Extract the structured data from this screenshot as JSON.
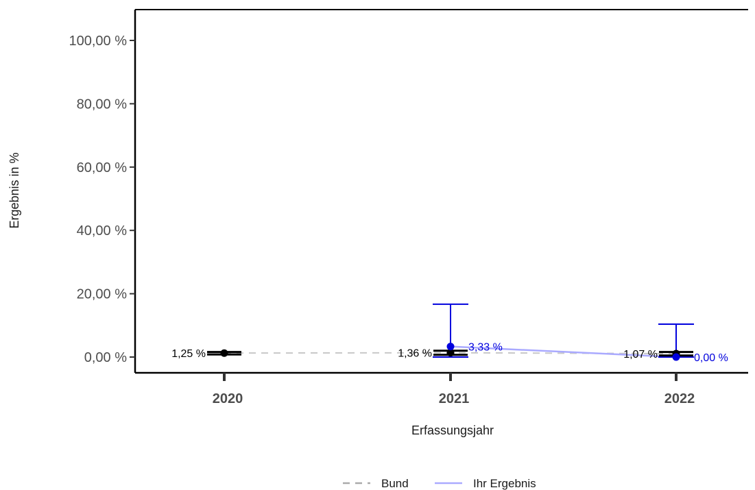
{
  "chart_data": {
    "type": "line",
    "xlabel": "Erfassungsjahr",
    "ylabel": "Ergebnis in %",
    "ylim": [
      0,
      100
    ],
    "y_ticks": [
      0,
      20,
      40,
      60,
      80,
      100
    ],
    "y_tick_labels": [
      "0,00 %",
      "20,00 %",
      "40,00 %",
      "60,00 %",
      "80,00 %",
      "100,00 %"
    ],
    "categories": [
      "2020",
      "2021",
      "2022"
    ],
    "grid": false,
    "legend_position": "bottom",
    "series": [
      {
        "name": "Bund",
        "style": "dashed",
        "color": "#c8c8c8",
        "marker_color": "#000000",
        "values": [
          1.25,
          1.36,
          1.07
        ],
        "labels": [
          "1,25 %",
          "1,36 %",
          "1,07 %"
        ],
        "ci_low": [
          0.8,
          0.7,
          0.5
        ],
        "ci_high": [
          1.6,
          2.0,
          1.6
        ]
      },
      {
        "name": "Ihr Ergebnis",
        "style": "solid",
        "color": "#aaaaff",
        "marker_color": "#0000dd",
        "values": [
          null,
          3.33,
          0.0
        ],
        "labels": [
          null,
          "3,33 %",
          "0,00 %"
        ],
        "ci_low": [
          null,
          0.0,
          0.0
        ],
        "ci_high": [
          null,
          16.7,
          10.4
        ]
      }
    ]
  },
  "legend": {
    "items": [
      {
        "label": "Bund"
      },
      {
        "label": "Ihr Ergebnis"
      }
    ]
  }
}
